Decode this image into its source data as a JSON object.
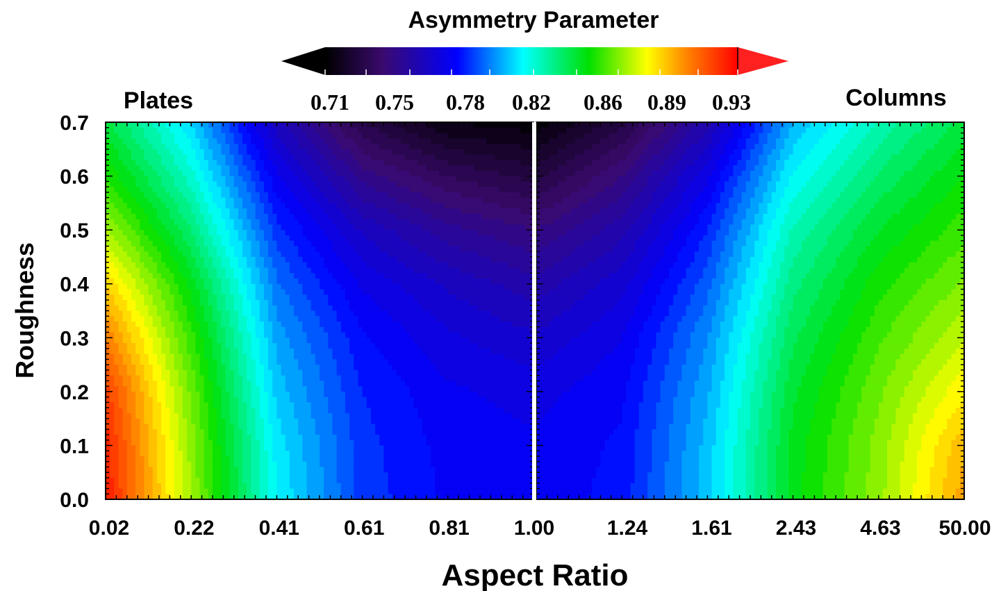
{
  "chart_data": {
    "type": "heatmap",
    "title": "Asymmetry Parameter",
    "xlabel": "Aspect Ratio",
    "ylabel": "Roughness",
    "panels": [
      {
        "name": "Plates",
        "x_ticks": [
          "0.02",
          "0.22",
          "0.41",
          "0.61",
          "0.81",
          "1.00"
        ],
        "x_values": [
          0.02,
          0.22,
          0.41,
          0.61,
          0.81,
          1.0
        ],
        "y_values": [
          0.0,
          0.1,
          0.2,
          0.3,
          0.4,
          0.5,
          0.6,
          0.7
        ],
        "z": [
          [
            0.925,
            0.87,
            0.815,
            0.788,
            0.779,
            0.777
          ],
          [
            0.923,
            0.868,
            0.813,
            0.787,
            0.778,
            0.776
          ],
          [
            0.918,
            0.864,
            0.808,
            0.785,
            0.776,
            0.773
          ],
          [
            0.905,
            0.857,
            0.803,
            0.781,
            0.771,
            0.766
          ],
          [
            0.89,
            0.848,
            0.796,
            0.774,
            0.764,
            0.757
          ],
          [
            0.871,
            0.835,
            0.787,
            0.764,
            0.752,
            0.745
          ],
          [
            0.855,
            0.822,
            0.776,
            0.748,
            0.735,
            0.728
          ],
          [
            0.842,
            0.81,
            0.762,
            0.73,
            0.715,
            0.712
          ]
        ]
      },
      {
        "name": "Columns",
        "x_ticks": [
          "1.00",
          "1.24",
          "1.61",
          "2.43",
          "4.63",
          "50.00"
        ],
        "x_values": [
          1.0,
          1.24,
          1.61,
          2.43,
          4.63,
          50.0
        ],
        "y_values": [
          0.0,
          0.1,
          0.2,
          0.3,
          0.4,
          0.5,
          0.6,
          0.7
        ],
        "z": [
          [
            0.777,
            0.782,
            0.808,
            0.848,
            0.868,
            0.898
          ],
          [
            0.776,
            0.781,
            0.807,
            0.847,
            0.867,
            0.894
          ],
          [
            0.773,
            0.779,
            0.804,
            0.844,
            0.864,
            0.884
          ],
          [
            0.766,
            0.775,
            0.8,
            0.839,
            0.859,
            0.874
          ],
          [
            0.757,
            0.768,
            0.793,
            0.833,
            0.853,
            0.866
          ],
          [
            0.745,
            0.758,
            0.785,
            0.826,
            0.845,
            0.858
          ],
          [
            0.728,
            0.745,
            0.774,
            0.816,
            0.836,
            0.85
          ],
          [
            0.712,
            0.728,
            0.758,
            0.805,
            0.826,
            0.842
          ]
        ]
      }
    ],
    "y_ticks": [
      "0.0",
      "0.1",
      "0.2",
      "0.3",
      "0.4",
      "0.5",
      "0.6",
      "0.7"
    ],
    "ylim": [
      0,
      0.7
    ],
    "colorbar": {
      "ticks": [
        "0.71",
        "0.75",
        "0.78",
        "0.82",
        "0.86",
        "0.89",
        "0.93"
      ],
      "range": [
        0.71,
        0.93
      ],
      "colors": [
        "#000000",
        "#3a0a6e",
        "#0000ff",
        "#00ffff",
        "#00e000",
        "#ffff00",
        "#ff8000",
        "#ff0000"
      ],
      "extend": "both"
    },
    "grid": false
  }
}
